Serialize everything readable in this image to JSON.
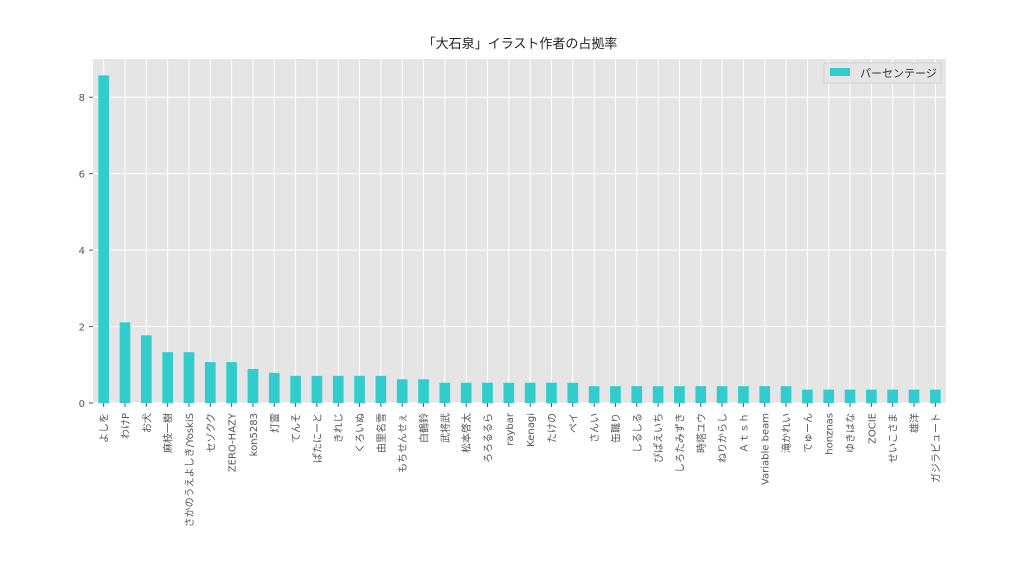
{
  "chart_data": {
    "type": "bar",
    "title": "「大石泉」イラスト作者の占拠率",
    "xlabel": "",
    "ylabel": "",
    "categories": [
      "よしを",
      "わけP",
      "お犬",
      "麻枝一樹",
      "さかのうえよしき/YoskiS",
      "セゾクク",
      "ZERO-HAZY",
      "kon5283",
      "灯雷",
      "てんそ",
      "ぱたにーと",
      "きれじ",
      "くろいぬ",
      "由里名雪",
      "もちせんせぇ",
      "白鶴鈴",
      "武将武",
      "松本啓太",
      "ろろるるら",
      "raybar",
      "Kenagi",
      "たけの",
      "ペイ",
      "さんい",
      "缶職り",
      "しるしる",
      "ぴぱえいち",
      "しろたみずき",
      "時塔ユウ",
      "ねりからし",
      "Ａｔｓｈ",
      "Variable beam",
      "滝かれい",
      "でゅーん",
      "honznas",
      "ゆきはな",
      "ZOCIE",
      "せいこさま",
      "雄洋",
      "ガジラビュート"
    ],
    "series": [
      {
        "name": "パーセンテージ",
        "values": [
          8.57,
          2.11,
          1.77,
          1.33,
          1.33,
          1.07,
          1.07,
          0.89,
          0.79,
          0.71,
          0.71,
          0.71,
          0.71,
          0.71,
          0.62,
          0.62,
          0.53,
          0.53,
          0.53,
          0.53,
          0.53,
          0.53,
          0.53,
          0.44,
          0.44,
          0.44,
          0.44,
          0.44,
          0.44,
          0.44,
          0.44,
          0.44,
          0.44,
          0.35,
          0.35,
          0.35,
          0.35,
          0.35,
          0.35,
          0.35
        ]
      }
    ],
    "ylim": [
      0,
      9.0
    ],
    "yticks": [
      0,
      2,
      4,
      6,
      8
    ],
    "grid": true,
    "legend_position": "top-right",
    "colors": {
      "bar": "#33cccc",
      "plot_bg": "#e5e5e5",
      "grid": "#ffffff",
      "text": "#555555",
      "title": "#222222"
    }
  }
}
